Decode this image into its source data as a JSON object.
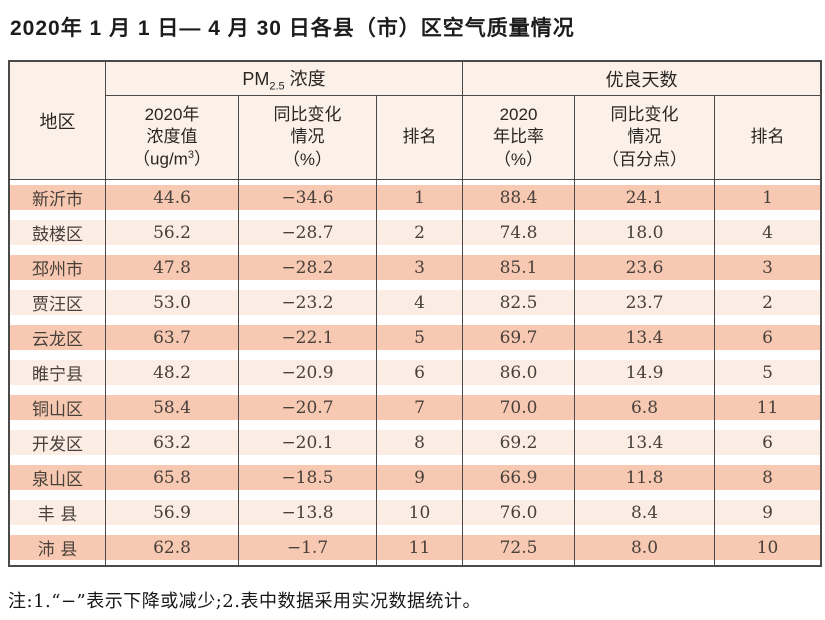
{
  "page": {
    "title": "2020年 1 月 1 日— 4 月 30 日各县（市）区空气质量情况",
    "note": "注:1.“−”表示下降或减少;2.表中数据采用实况数据统计。"
  },
  "colors": {
    "border": "#4a4a4a",
    "header_bg": "#fcf1e9",
    "odd_row": "#f8c9b2",
    "even_row": "#fbece4"
  },
  "table": {
    "header": {
      "region": "地区",
      "pm_group": {
        "prefix": "PM",
        "sub": "2.5",
        "suffix": " 浓度"
      },
      "good_group": "优良天数",
      "pm_value": {
        "line1": "2020年",
        "line2": "浓度值",
        "unit_prefix": "（ug/m",
        "unit_sup": "3",
        "unit_suffix": "）"
      },
      "pm_change": {
        "line1": "同比变化",
        "line2": "情况",
        "line3": "（%）"
      },
      "pm_rank": "排名",
      "good_rate": {
        "line1": "2020",
        "line2": "年比率",
        "line3": "（%）"
      },
      "good_change": {
        "line1": "同比变化",
        "line2": "情况",
        "line3": "（百分点）"
      },
      "good_rank": "排名"
    },
    "rows": [
      {
        "region": "新沂市",
        "pm_value": "44.6",
        "pm_change": "−34.6",
        "pm_rank": "1",
        "good_rate": "88.4",
        "good_change": "24.1",
        "good_rank": "1"
      },
      {
        "region": "鼓楼区",
        "pm_value": "56.2",
        "pm_change": "−28.7",
        "pm_rank": "2",
        "good_rate": "74.8",
        "good_change": "18.0",
        "good_rank": "4"
      },
      {
        "region": "邳州市",
        "pm_value": "47.8",
        "pm_change": "−28.2",
        "pm_rank": "3",
        "good_rate": "85.1",
        "good_change": "23.6",
        "good_rank": "3"
      },
      {
        "region": "贾汪区",
        "pm_value": "53.0",
        "pm_change": "−23.2",
        "pm_rank": "4",
        "good_rate": "82.5",
        "good_change": "23.7",
        "good_rank": "2"
      },
      {
        "region": "云龙区",
        "pm_value": "63.7",
        "pm_change": "−22.1",
        "pm_rank": "5",
        "good_rate": "69.7",
        "good_change": "13.4",
        "good_rank": "6"
      },
      {
        "region": "睢宁县",
        "pm_value": "48.2",
        "pm_change": "−20.9",
        "pm_rank": "6",
        "good_rate": "86.0",
        "good_change": "14.9",
        "good_rank": "5"
      },
      {
        "region": "铜山区",
        "pm_value": "58.4",
        "pm_change": "−20.7",
        "pm_rank": "7",
        "good_rate": "70.0",
        "good_change": "6.8",
        "good_rank": "11"
      },
      {
        "region": "开发区",
        "pm_value": "63.2",
        "pm_change": "−20.1",
        "pm_rank": "8",
        "good_rate": "69.2",
        "good_change": "13.4",
        "good_rank": "6"
      },
      {
        "region": "泉山区",
        "pm_value": "65.8",
        "pm_change": "−18.5",
        "pm_rank": "9",
        "good_rate": "66.9",
        "good_change": "11.8",
        "good_rank": "8"
      },
      {
        "region": "丰 县",
        "pm_value": "56.9",
        "pm_change": "−13.8",
        "pm_rank": "10",
        "good_rate": "76.0",
        "good_change": "8.4",
        "good_rank": "9"
      },
      {
        "region": "沛 县",
        "pm_value": "62.8",
        "pm_change": "−1.7",
        "pm_rank": "11",
        "good_rate": "72.5",
        "good_change": "8.0",
        "good_rank": "10"
      }
    ]
  }
}
